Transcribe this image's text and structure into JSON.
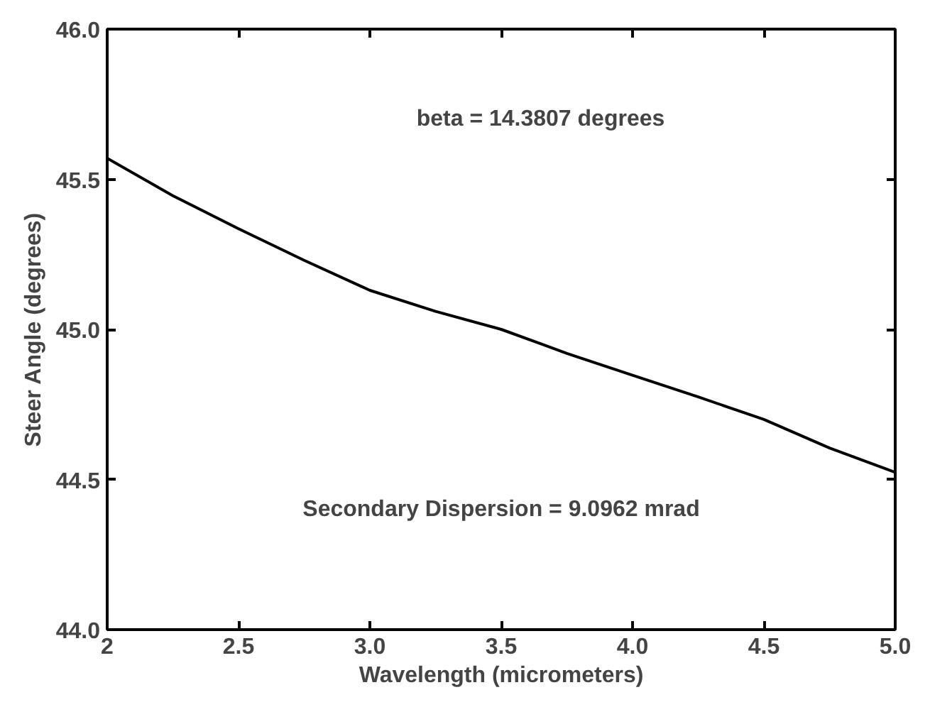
{
  "chart_data": {
    "type": "line",
    "xlabel": "Wavelength (micrometers)",
    "ylabel": "Steer Angle (degrees)",
    "x": [
      2.0,
      2.25,
      2.5,
      2.75,
      3.0,
      3.25,
      3.5,
      3.75,
      4.0,
      4.25,
      4.5,
      4.75,
      5.0
    ],
    "series": [
      {
        "color": "#000000",
        "values": [
          45.57,
          45.445,
          45.335,
          45.23,
          45.13,
          45.06,
          45.0,
          44.92,
          44.847,
          44.775,
          44.7,
          44.605,
          44.524
        ]
      }
    ],
    "xlim": [
      2,
      5
    ],
    "xticks": [
      2,
      {
        "value": 2.5,
        "label": "2.5"
      },
      {
        "value": 3,
        "label": "3.0"
      },
      {
        "value": 3.5,
        "label": "3.5"
      },
      {
        "value": 4,
        "label": "4.0"
      },
      {
        "value": 4.5,
        "label": "4.5"
      },
      {
        "value": 5,
        "label": "5.0"
      }
    ],
    "ylim": [
      44,
      46
    ],
    "yticks": [
      {
        "value": 44,
        "label": "44.0"
      },
      {
        "value": 44.5,
        "label": "44.5"
      },
      {
        "value": 45,
        "label": "45.0"
      },
      {
        "value": 45.5,
        "label": "45.5"
      },
      {
        "value": 46,
        "label": "46.0"
      }
    ],
    "annotations": [
      "beta = 14.3807 degrees",
      "Secondary Dispersion = 9.0962 mrad"
    ],
    "grid": false,
    "line_style": "solid"
  }
}
